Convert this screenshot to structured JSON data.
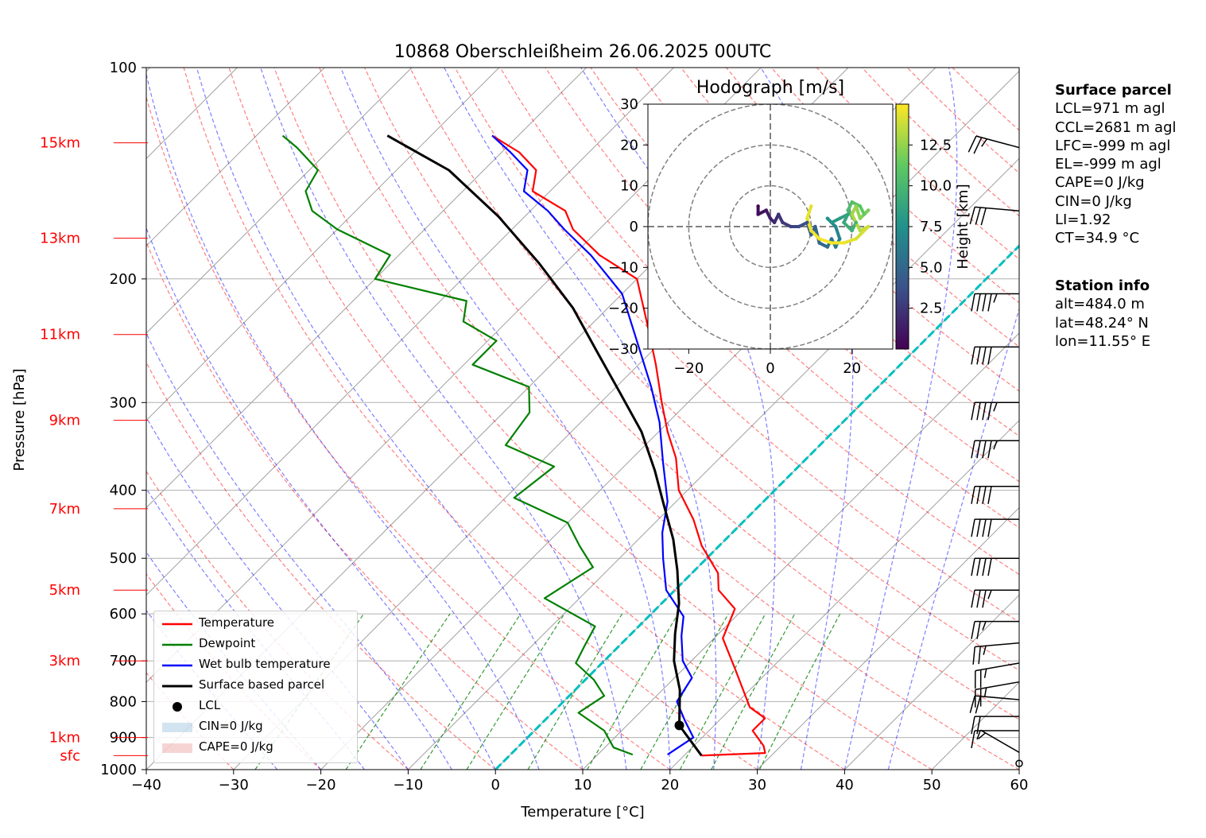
{
  "title": "10868 Oberschleißheim 26.06.2025 00UTC",
  "colors": {
    "temperature": "#ff0000",
    "dewpoint": "#008000",
    "wetbulb": "#0000ff",
    "parcel": "#000000",
    "isotherm_zero": "#00bfbf",
    "dry_adiabat": "#ff0000",
    "moist_adiabat": "#0000ff",
    "mixing_ratio": "#008000",
    "height_label": "#ff0000"
  },
  "chart_data": [
    {
      "type": "line",
      "title": "10868 Oberschleißheim 26.06.2025 00UTC",
      "xlabel": "Temperature [°C]",
      "ylabel": "Pressure [hPa]",
      "xlim": [
        -40,
        60
      ],
      "ylim": [
        1000,
        100
      ],
      "yscale": "log",
      "skew": true,
      "grid": true,
      "legend_position": "bottom-left",
      "x_ticks": [
        -40,
        -30,
        -20,
        -10,
        0,
        10,
        20,
        30,
        40,
        50,
        60
      ],
      "x_tick_labels": [
        "−40",
        "−30",
        "−20",
        "−10",
        "0",
        "10",
        "20",
        "30",
        "40",
        "50",
        "60"
      ],
      "y_ticks": [
        100,
        200,
        300,
        400,
        500,
        600,
        700,
        800,
        900,
        1000
      ],
      "y_tick_labels": [
        "100",
        "200",
        "300",
        "400",
        "500",
        "600",
        "700",
        "800",
        "900",
        "1000"
      ],
      "height_labels": [
        {
          "label": "sfc",
          "p": 955
        },
        {
          "label": "1km",
          "p": 900
        },
        {
          "label": "3km",
          "p": 700
        },
        {
          "label": "5km",
          "p": 555
        },
        {
          "label": "7km",
          "p": 425
        },
        {
          "label": "9km",
          "p": 318
        },
        {
          "label": "11km",
          "p": 240
        },
        {
          "label": "13km",
          "p": 175
        },
        {
          "label": "15km",
          "p": 128
        }
      ],
      "series": [
        {
          "name": "Temperature",
          "points": [
            [
              22,
              955
            ],
            [
              29,
              947
            ],
            [
              28,
              925
            ],
            [
              25,
              880
            ],
            [
              25,
              845
            ],
            [
              22,
              815
            ],
            [
              16,
              720
            ],
            [
              11,
              650
            ],
            [
              9,
              590
            ],
            [
              5,
              555
            ],
            [
              3,
              525
            ],
            [
              -2,
              480
            ],
            [
              -6,
              440
            ],
            [
              -11,
              400
            ],
            [
              -15,
              360
            ],
            [
              -19,
              330
            ],
            [
              -23,
              300
            ],
            [
              -28,
              265
            ],
            [
              -34,
              230
            ],
            [
              -40,
              200
            ],
            [
              -47,
              185
            ],
            [
              -53,
              170
            ],
            [
              -56,
              160
            ],
            [
              -62,
              150
            ],
            [
              -64,
              140
            ],
            [
              -68,
              132
            ],
            [
              -73,
              125
            ]
          ]
        },
        {
          "name": "Dewpoint",
          "points": [
            [
              14,
              952
            ],
            [
              11,
              930
            ],
            [
              8,
              880
            ],
            [
              3,
              830
            ],
            [
              4,
              785
            ],
            [
              1,
              745
            ],
            [
              -3,
              705
            ],
            [
              -4,
              665
            ],
            [
              -5,
              625
            ],
            [
              -14,
              570
            ],
            [
              -12,
              515
            ],
            [
              -16,
              480
            ],
            [
              -20,
              445
            ],
            [
              -29,
              410
            ],
            [
              -28,
              370
            ],
            [
              -36,
              345
            ],
            [
              -37,
              310
            ],
            [
              -40,
              285
            ],
            [
              -49,
              265
            ],
            [
              -49,
              245
            ],
            [
              -55,
              230
            ],
            [
              -57,
              215
            ],
            [
              -70,
              200
            ],
            [
              -71,
              185
            ],
            [
              -80,
              170
            ],
            [
              -85,
              160
            ],
            [
              -88,
              150
            ],
            [
              -89,
              140
            ],
            [
              -94,
              130
            ],
            [
              -97,
              125
            ]
          ]
        },
        {
          "name": "Wet bulb temperature",
          "points": [
            [
              18,
              952
            ],
            [
              19,
              900
            ],
            [
              16,
              850
            ],
            [
              13,
              800
            ],
            [
              12,
              740
            ],
            [
              9,
              700
            ],
            [
              6,
              645
            ],
            [
              4,
              605
            ],
            [
              -1,
              555
            ],
            [
              -5,
              500
            ],
            [
              -8,
              460
            ],
            [
              -11,
              415
            ],
            [
              -16,
              365
            ],
            [
              -21,
              320
            ],
            [
              -26,
              285
            ],
            [
              -32,
              250
            ],
            [
              -40,
              210
            ],
            [
              -48,
              185
            ],
            [
              -54,
              170
            ],
            [
              -58,
              160
            ],
            [
              -63,
              150
            ],
            [
              -65,
              140
            ],
            [
              -69,
              132
            ],
            [
              -73,
              125
            ]
          ]
        },
        {
          "name": "Surface based parcel",
          "points": [
            [
              22,
              955
            ],
            [
              16,
              865
            ],
            [
              12,
              770
            ],
            [
              8,
              700
            ],
            [
              5,
              640
            ],
            [
              2,
              580
            ],
            [
              -2,
              520
            ],
            [
              -6,
              470
            ],
            [
              -11,
              420
            ],
            [
              -16,
              375
            ],
            [
              -22,
              330
            ],
            [
              -29,
              290
            ],
            [
              -36,
              255
            ],
            [
              -44,
              220
            ],
            [
              -53,
              190
            ],
            [
              -63,
              163
            ],
            [
              -74,
              140
            ],
            [
              -85,
              125
            ]
          ]
        },
        {
          "name": "LCL",
          "points": [
            [
              16,
              865
            ]
          ]
        }
      ],
      "legend": [
        "Temperature",
        "Dewpoint",
        "Wet bulb temperature",
        "Surface based parcel",
        "LCL",
        "CIN=0 J/kg",
        "CAPE=0 J/kg"
      ],
      "wind_barbs": [
        {
          "p": 980,
          "speed_kt": 0,
          "dir": 0
        },
        {
          "p": 945,
          "speed_kt": 5,
          "dir": 300
        },
        {
          "p": 880,
          "speed_kt": 15,
          "dir": 270
        },
        {
          "p": 840,
          "speed_kt": 20,
          "dir": 270
        },
        {
          "p": 795,
          "speed_kt": 20,
          "dir": 275
        },
        {
          "p": 750,
          "speed_kt": 25,
          "dir": 260
        },
        {
          "p": 705,
          "speed_kt": 25,
          "dir": 260
        },
        {
          "p": 660,
          "speed_kt": 25,
          "dir": 265
        },
        {
          "p": 615,
          "speed_kt": 25,
          "dir": 270
        },
        {
          "p": 555,
          "speed_kt": 35,
          "dir": 270
        },
        {
          "p": 500,
          "speed_kt": 40,
          "dir": 270
        },
        {
          "p": 440,
          "speed_kt": 40,
          "dir": 270
        },
        {
          "p": 395,
          "speed_kt": 40,
          "dir": 270
        },
        {
          "p": 340,
          "speed_kt": 45,
          "dir": 270
        },
        {
          "p": 300,
          "speed_kt": 45,
          "dir": 270
        },
        {
          "p": 250,
          "speed_kt": 40,
          "dir": 270
        },
        {
          "p": 210,
          "speed_kt": 45,
          "dir": 270
        },
        {
          "p": 160,
          "speed_kt": 30,
          "dir": 275
        },
        {
          "p": 130,
          "speed_kt": 25,
          "dir": 285
        }
      ]
    },
    {
      "type": "scatter",
      "title": "Hodograph [m/s]",
      "xlim": [
        -30,
        30
      ],
      "ylim": [
        -30,
        30
      ],
      "x_ticks": [
        -20,
        0,
        20
      ],
      "x_tick_labels": [
        "−20",
        "0",
        "20"
      ],
      "y_ticks": [
        30,
        20,
        10,
        0,
        -10,
        -20,
        -30
      ],
      "y_tick_labels": [
        "30",
        "20",
        "10",
        "0",
        "−10",
        "−20",
        "−30"
      ],
      "rings": [
        10,
        20,
        30
      ],
      "colorbar": {
        "label": "Height [km]",
        "range": [
          0,
          15
        ],
        "ticks": [
          2.5,
          5.0,
          7.5,
          10.0,
          12.5
        ],
        "tick_labels": [
          "2.5",
          "5.0",
          "7.5",
          "10.0",
          "12.5"
        ]
      },
      "points": [
        [
          -3,
          5,
          0.2
        ],
        [
          -3,
          3,
          0.6
        ],
        [
          -1,
          4,
          1.0
        ],
        [
          0,
          2,
          1.4
        ],
        [
          1,
          1,
          1.8
        ],
        [
          2,
          3,
          2.2
        ],
        [
          3,
          1,
          2.6
        ],
        [
          5,
          0,
          3.0
        ],
        [
          7,
          0,
          3.4
        ],
        [
          9,
          1,
          3.8
        ],
        [
          10,
          -2,
          4.2
        ],
        [
          11,
          0,
          4.6
        ],
        [
          12,
          -4,
          5.0
        ],
        [
          14,
          -5,
          5.4
        ],
        [
          15,
          -3,
          5.8
        ],
        [
          16,
          -5,
          6.2
        ],
        [
          17,
          -3,
          6.6
        ],
        [
          16,
          0,
          7.0
        ],
        [
          14,
          2,
          7.4
        ],
        [
          15,
          1,
          7.8
        ],
        [
          17,
          2,
          8.2
        ],
        [
          19,
          3,
          8.6
        ],
        [
          18,
          1,
          9.0
        ],
        [
          20,
          -1,
          9.4
        ],
        [
          21,
          1,
          9.8
        ],
        [
          19,
          4,
          10.2
        ],
        [
          20,
          6,
          10.6
        ],
        [
          22,
          5,
          11.0
        ],
        [
          23,
          3,
          11.4
        ],
        [
          24,
          4,
          11.8
        ],
        [
          22,
          2,
          12.2
        ],
        [
          21,
          5,
          12.6
        ],
        [
          20,
          3,
          13.0
        ],
        [
          22,
          -1,
          13.4
        ],
        [
          24,
          0,
          13.8
        ],
        [
          21,
          -3,
          14.2
        ],
        [
          18,
          -4,
          14.6
        ],
        [
          15,
          -4,
          15.0
        ],
        [
          12,
          -3,
          14.8
        ],
        [
          10,
          -1,
          14.6
        ],
        [
          9,
          2,
          14.5
        ],
        [
          10,
          5,
          14.4
        ]
      ]
    }
  ],
  "surface_parcel": {
    "heading": "Surface parcel",
    "lines": [
      "LCL=971 m agl",
      "CCL=2681 m agl",
      "LFC=-999 m agl",
      "EL=-999 m agl",
      "CAPE=0 J/kg",
      "CIN=0 J/kg",
      "LI=1.92",
      "CT=34.9 °C"
    ]
  },
  "station_info": {
    "heading": "Station info",
    "lines": [
      "alt=484.0 m",
      "lat=48.24° N",
      "lon=11.55° E"
    ]
  }
}
